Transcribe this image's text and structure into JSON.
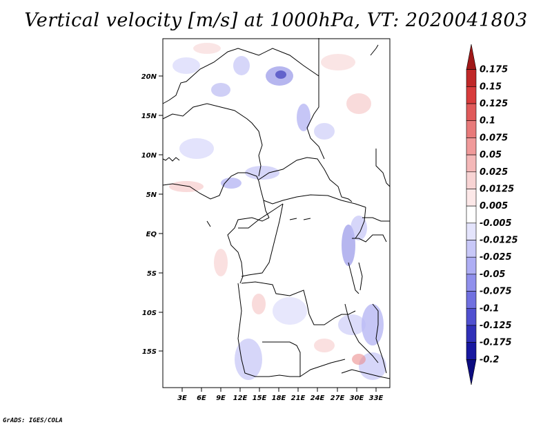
{
  "title": "Vertical velocity [m/s] at 1000hPa, VT: 2020041803",
  "credit": "GrADS: IGES/COLA",
  "lat_ticks": [
    "20N",
    "15N",
    "10N",
    "5N",
    "EQ",
    "5S",
    "10S",
    "15S"
  ],
  "lon_ticks": [
    "3E",
    "6E",
    "9E",
    "12E",
    "15E",
    "18E",
    "21E",
    "24E",
    "27E",
    "30E",
    "33E"
  ],
  "colorbar": {
    "labels": [
      "0.175",
      "0.15",
      "0.125",
      "0.1",
      "0.075",
      "0.05",
      "0.025",
      "0.0125",
      "0.005",
      "-0.005",
      "-0.0125",
      "-0.025",
      "-0.05",
      "-0.075",
      "-0.1",
      "-0.125",
      "-0.175",
      "-0.2"
    ],
    "colors": [
      "#a01818",
      "#c02828",
      "#d83c3c",
      "#e05a5a",
      "#e87a7a",
      "#f09a9a",
      "#f4b8b8",
      "#f8d4d4",
      "#fce8e8",
      "#ffffff",
      "#e4e4fc",
      "#c8c8f8",
      "#aeaef4",
      "#9090ec",
      "#7070e0",
      "#5050d0",
      "#3030b8",
      "#1818a0",
      "#0c0c80"
    ]
  }
}
